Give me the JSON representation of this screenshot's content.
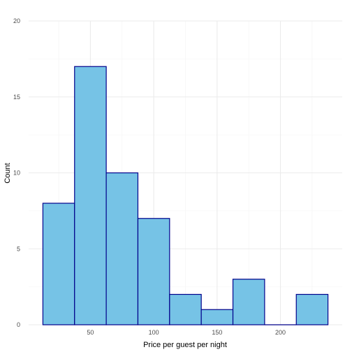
{
  "chart_data": {
    "type": "bar",
    "title": "",
    "xlabel": "Price per guest per night",
    "ylabel": "Count",
    "bins": [
      {
        "start": 12.5,
        "end": 37.5,
        "count": 8
      },
      {
        "start": 37.5,
        "end": 62.5,
        "count": 17
      },
      {
        "start": 62.5,
        "end": 87.5,
        "count": 10
      },
      {
        "start": 87.5,
        "end": 112.5,
        "count": 7
      },
      {
        "start": 112.5,
        "end": 137.5,
        "count": 2
      },
      {
        "start": 137.5,
        "end": 162.5,
        "count": 1
      },
      {
        "start": 162.5,
        "end": 187.5,
        "count": 3
      },
      {
        "start": 187.5,
        "end": 212.5,
        "count": 0
      },
      {
        "start": 212.5,
        "end": 237.5,
        "count": 2
      }
    ],
    "xlim": [
      1.25,
      248.75
    ],
    "ylim": [
      0,
      20
    ],
    "x_ticks": [
      50,
      100,
      150,
      200
    ],
    "y_ticks": [
      0,
      5,
      10,
      15,
      20
    ],
    "grid": true,
    "legend": "none",
    "colors": {
      "bar_fill": "#76c3e6",
      "bar_outline": "#00008b",
      "grid_major": "#ebebeb",
      "grid_minor": "#f4f4f4",
      "tick_text": "#4d4d4d",
      "axis_title": "#000000"
    }
  }
}
